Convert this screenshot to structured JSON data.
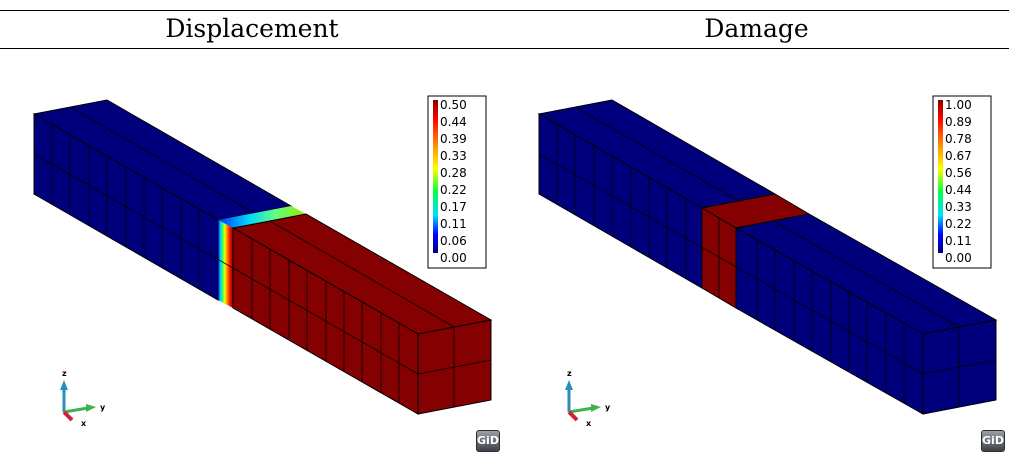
{
  "headers": {
    "left": "Displacement",
    "right": "Damage"
  },
  "panels": [
    {
      "name": "displacement",
      "legend_labels": [
        "0.50",
        "0.44",
        "0.39",
        "0.33",
        "0.28",
        "0.22",
        "0.17",
        "0.11",
        "0.06",
        "0.00"
      ],
      "axis_labels": {
        "z": "z",
        "y": "y",
        "x": "x"
      },
      "logo_text": "GiD",
      "colors": {
        "low": "#00007d",
        "high": "#850000"
      }
    },
    {
      "name": "damage",
      "legend_labels": [
        "1.00",
        "0.89",
        "0.78",
        "0.67",
        "0.56",
        "0.44",
        "0.33",
        "0.22",
        "0.11",
        "0.00"
      ],
      "axis_labels": {
        "z": "z",
        "y": "y",
        "x": "x"
      },
      "logo_text": "GiD",
      "colors": {
        "low": "#00007d",
        "high": "#850000"
      }
    }
  ]
}
